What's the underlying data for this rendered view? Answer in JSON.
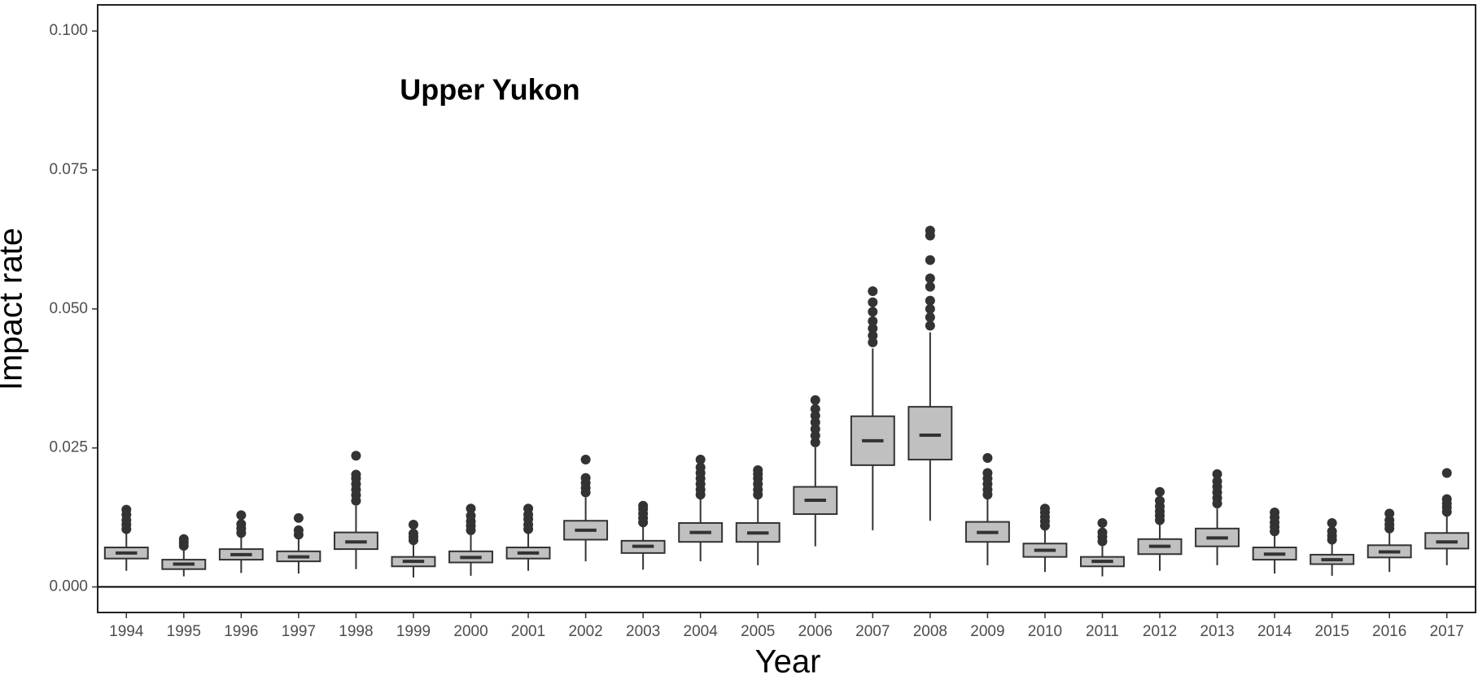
{
  "chart_data": {
    "type": "box",
    "title": "Upper Yukon",
    "xlabel": "Year",
    "ylabel": "Impact rate",
    "categories": [
      "1994",
      "1995",
      "1996",
      "1997",
      "1998",
      "1999",
      "2000",
      "2001",
      "2002",
      "2003",
      "2004",
      "2005",
      "2006",
      "2007",
      "2008",
      "2009",
      "2010",
      "2011",
      "2012",
      "2013",
      "2014",
      "2015",
      "2016",
      "2017"
    ],
    "boxes": [
      {
        "low": 0.0029,
        "q1": 0.0051,
        "median": 0.0061,
        "q3": 0.0071,
        "high": 0.0097,
        "outliers": [
          0.0104,
          0.0112,
          0.012,
          0.013,
          0.0139
        ]
      },
      {
        "low": 0.0019,
        "q1": 0.0032,
        "median": 0.0041,
        "q3": 0.0049,
        "high": 0.0069,
        "outliers": [
          0.0074,
          0.008,
          0.0086
        ]
      },
      {
        "low": 0.0025,
        "q1": 0.0049,
        "median": 0.0058,
        "q3": 0.0068,
        "high": 0.009,
        "outliers": [
          0.0097,
          0.0105,
          0.0113,
          0.0129
        ]
      },
      {
        "low": 0.0024,
        "q1": 0.0046,
        "median": 0.0054,
        "q3": 0.0064,
        "high": 0.0088,
        "outliers": [
          0.0094,
          0.0102,
          0.0124
        ]
      },
      {
        "low": 0.0032,
        "q1": 0.0068,
        "median": 0.0081,
        "q3": 0.0098,
        "high": 0.0146,
        "outliers": [
          0.0155,
          0.0165,
          0.0175,
          0.0185,
          0.0195,
          0.0202,
          0.0236
        ]
      },
      {
        "low": 0.0017,
        "q1": 0.0037,
        "median": 0.0046,
        "q3": 0.0054,
        "high": 0.0078,
        "outliers": [
          0.0084,
          0.009,
          0.0096,
          0.0112
        ]
      },
      {
        "low": 0.002,
        "q1": 0.0044,
        "median": 0.0053,
        "q3": 0.0064,
        "high": 0.0095,
        "outliers": [
          0.0102,
          0.011,
          0.0118,
          0.0128,
          0.0141
        ]
      },
      {
        "low": 0.0029,
        "q1": 0.0051,
        "median": 0.0061,
        "q3": 0.0071,
        "high": 0.0097,
        "outliers": [
          0.0104,
          0.0112,
          0.0122,
          0.013,
          0.0141
        ]
      },
      {
        "low": 0.0046,
        "q1": 0.0085,
        "median": 0.0102,
        "q3": 0.0119,
        "high": 0.0161,
        "outliers": [
          0.017,
          0.0178,
          0.0187,
          0.0196,
          0.0229
        ]
      },
      {
        "low": 0.0031,
        "q1": 0.0061,
        "median": 0.0073,
        "q3": 0.0083,
        "high": 0.011,
        "outliers": [
          0.0116,
          0.0124,
          0.0132,
          0.014,
          0.0146
        ]
      },
      {
        "low": 0.0046,
        "q1": 0.0081,
        "median": 0.0098,
        "q3": 0.0115,
        "high": 0.0158,
        "outliers": [
          0.0166,
          0.0175,
          0.0185,
          0.0195,
          0.0205,
          0.0215,
          0.0229
        ]
      },
      {
        "low": 0.0039,
        "q1": 0.0081,
        "median": 0.0097,
        "q3": 0.0115,
        "high": 0.0158,
        "outliers": [
          0.0166,
          0.0175,
          0.0185,
          0.0195,
          0.0203,
          0.021
        ]
      },
      {
        "low": 0.0073,
        "q1": 0.0131,
        "median": 0.0156,
        "q3": 0.018,
        "high": 0.0251,
        "outliers": [
          0.026,
          0.0272,
          0.0284,
          0.0296,
          0.0308,
          0.032,
          0.0336
        ]
      },
      {
        "low": 0.0102,
        "q1": 0.0219,
        "median": 0.0263,
        "q3": 0.0307,
        "high": 0.0429,
        "outliers": [
          0.044,
          0.0452,
          0.0465,
          0.0478,
          0.0495,
          0.0512,
          0.0532
        ]
      },
      {
        "low": 0.0119,
        "q1": 0.0229,
        "median": 0.0273,
        "q3": 0.0324,
        "high": 0.0458,
        "outliers": [
          0.047,
          0.0485,
          0.05,
          0.0515,
          0.054,
          0.0555,
          0.0588,
          0.0632,
          0.0641
        ]
      },
      {
        "low": 0.0039,
        "q1": 0.0081,
        "median": 0.0098,
        "q3": 0.0117,
        "high": 0.0158,
        "outliers": [
          0.0166,
          0.0175,
          0.0185,
          0.0195,
          0.0205,
          0.0232
        ]
      },
      {
        "low": 0.0027,
        "q1": 0.0054,
        "median": 0.0066,
        "q3": 0.0078,
        "high": 0.0102,
        "outliers": [
          0.011,
          0.0118,
          0.0126,
          0.0134,
          0.0141
        ]
      },
      {
        "low": 0.0019,
        "q1": 0.0037,
        "median": 0.0046,
        "q3": 0.0054,
        "high": 0.0075,
        "outliers": [
          0.0082,
          0.009,
          0.0098,
          0.0115
        ]
      },
      {
        "low": 0.0029,
        "q1": 0.0059,
        "median": 0.0073,
        "q3": 0.0086,
        "high": 0.0112,
        "outliers": [
          0.012,
          0.0128,
          0.0136,
          0.0145,
          0.0155,
          0.0171
        ]
      },
      {
        "low": 0.0039,
        "q1": 0.0073,
        "median": 0.0088,
        "q3": 0.0105,
        "high": 0.0141,
        "outliers": [
          0.015,
          0.016,
          0.017,
          0.018,
          0.019,
          0.0203
        ]
      },
      {
        "low": 0.0024,
        "q1": 0.0049,
        "median": 0.0059,
        "q3": 0.0071,
        "high": 0.0093,
        "outliers": [
          0.01,
          0.0108,
          0.0116,
          0.0125,
          0.0134
        ]
      },
      {
        "low": 0.002,
        "q1": 0.0041,
        "median": 0.0049,
        "q3": 0.0058,
        "high": 0.0078,
        "outliers": [
          0.0085,
          0.0092,
          0.01,
          0.0115
        ]
      },
      {
        "low": 0.0027,
        "q1": 0.0053,
        "median": 0.0063,
        "q3": 0.0075,
        "high": 0.0098,
        "outliers": [
          0.0105,
          0.0112,
          0.012,
          0.0132
        ]
      },
      {
        "low": 0.0039,
        "q1": 0.0069,
        "median": 0.0081,
        "q3": 0.0097,
        "high": 0.0127,
        "outliers": [
          0.0135,
          0.0143,
          0.015,
          0.0158,
          0.0205
        ]
      }
    ],
    "color": "#c0c0c0",
    "ylim": [
      -0.0046,
      0.1047
    ],
    "yticks": [
      {
        "value": 0,
        "label": "0.000"
      },
      {
        "value": 0.025,
        "label": "0.025"
      },
      {
        "value": 0.05,
        "label": "0.050"
      },
      {
        "value": 0.075,
        "label": "0.075"
      },
      {
        "value": 0.1,
        "label": "0.100"
      }
    ],
    "hline": 0
  }
}
